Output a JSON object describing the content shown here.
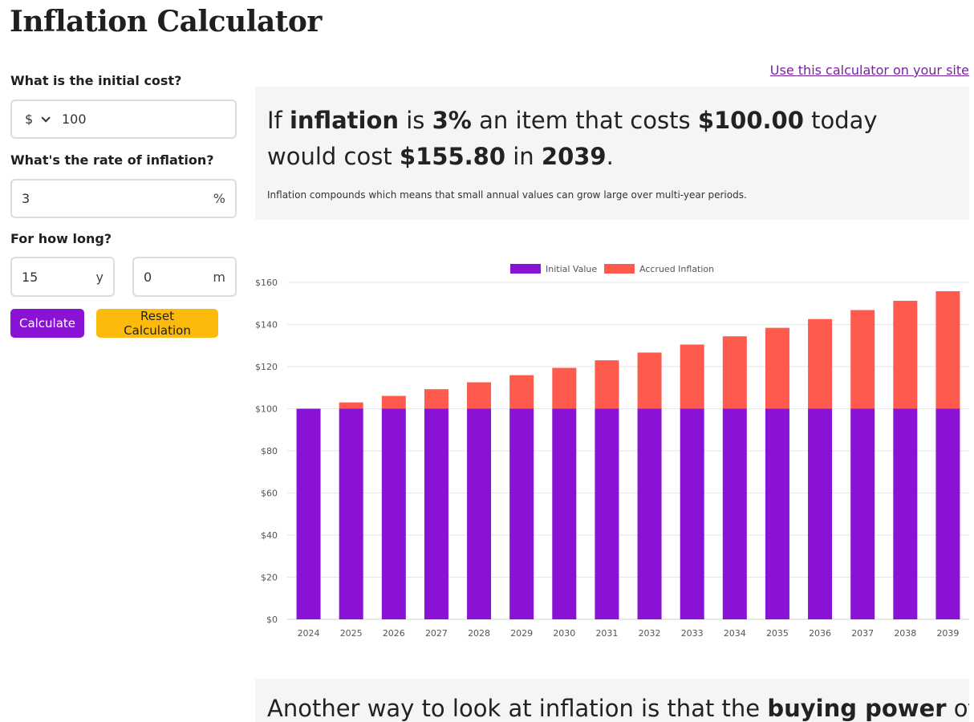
{
  "page": {
    "title": "Inflation Calculator"
  },
  "form": {
    "initial_cost_label": "What is the initial cost?",
    "currency_symbol": "$",
    "initial_cost_value": "100",
    "rate_label": "What's the rate of inflation?",
    "rate_value": "3",
    "rate_unit": "%",
    "duration_label": "For how long?",
    "years_value": "15",
    "years_unit": "y",
    "months_value": "0",
    "months_unit": "m",
    "calculate_label": "Calculate",
    "reset_label": "Reset Calculation"
  },
  "embed_link": "Use this calculator on your site",
  "result": {
    "p1": "If ",
    "b1": "inflation",
    "p2": " is ",
    "b2": "3%",
    "p3": " an item that costs ",
    "b3": "$100.00",
    "p4": " today would cost ",
    "b4": "$155.80",
    "p5": " in ",
    "b5": "2039",
    "p6": ".",
    "note": "Inflation compounds which means that small annual values can grow large over multi-year periods."
  },
  "second": {
    "p1": "Another way to look at inflation is that the ",
    "b1": "buying power",
    "p2": " of"
  },
  "colors": {
    "initial": "#8a12d4",
    "inflation": "#ff5a4e",
    "button_primary": "#8a12d4",
    "button_reset": "#fcbb0c"
  },
  "chart_data": {
    "type": "bar",
    "stacked": true,
    "categories": [
      "2024",
      "2025",
      "2026",
      "2027",
      "2028",
      "2029",
      "2030",
      "2031",
      "2032",
      "2033",
      "2034",
      "2035",
      "2036",
      "2037",
      "2038",
      "2039"
    ],
    "series": [
      {
        "name": "Initial Value",
        "color": "#8a12d4",
        "values": [
          100,
          100,
          100,
          100,
          100,
          100,
          100,
          100,
          100,
          100,
          100,
          100,
          100,
          100,
          100,
          100
        ]
      },
      {
        "name": "Accrued Inflation",
        "color": "#ff5a4e",
        "values": [
          0,
          3,
          6.09,
          9.27,
          12.55,
          15.93,
          19.41,
          22.99,
          26.68,
          30.48,
          34.39,
          38.42,
          42.58,
          46.85,
          51.26,
          55.8
        ]
      }
    ],
    "ylim": [
      0,
      160
    ],
    "yticks": [
      0,
      20,
      40,
      60,
      80,
      100,
      120,
      140,
      160
    ],
    "ytick_prefix": "$",
    "grid": true,
    "legend": "top-center"
  }
}
